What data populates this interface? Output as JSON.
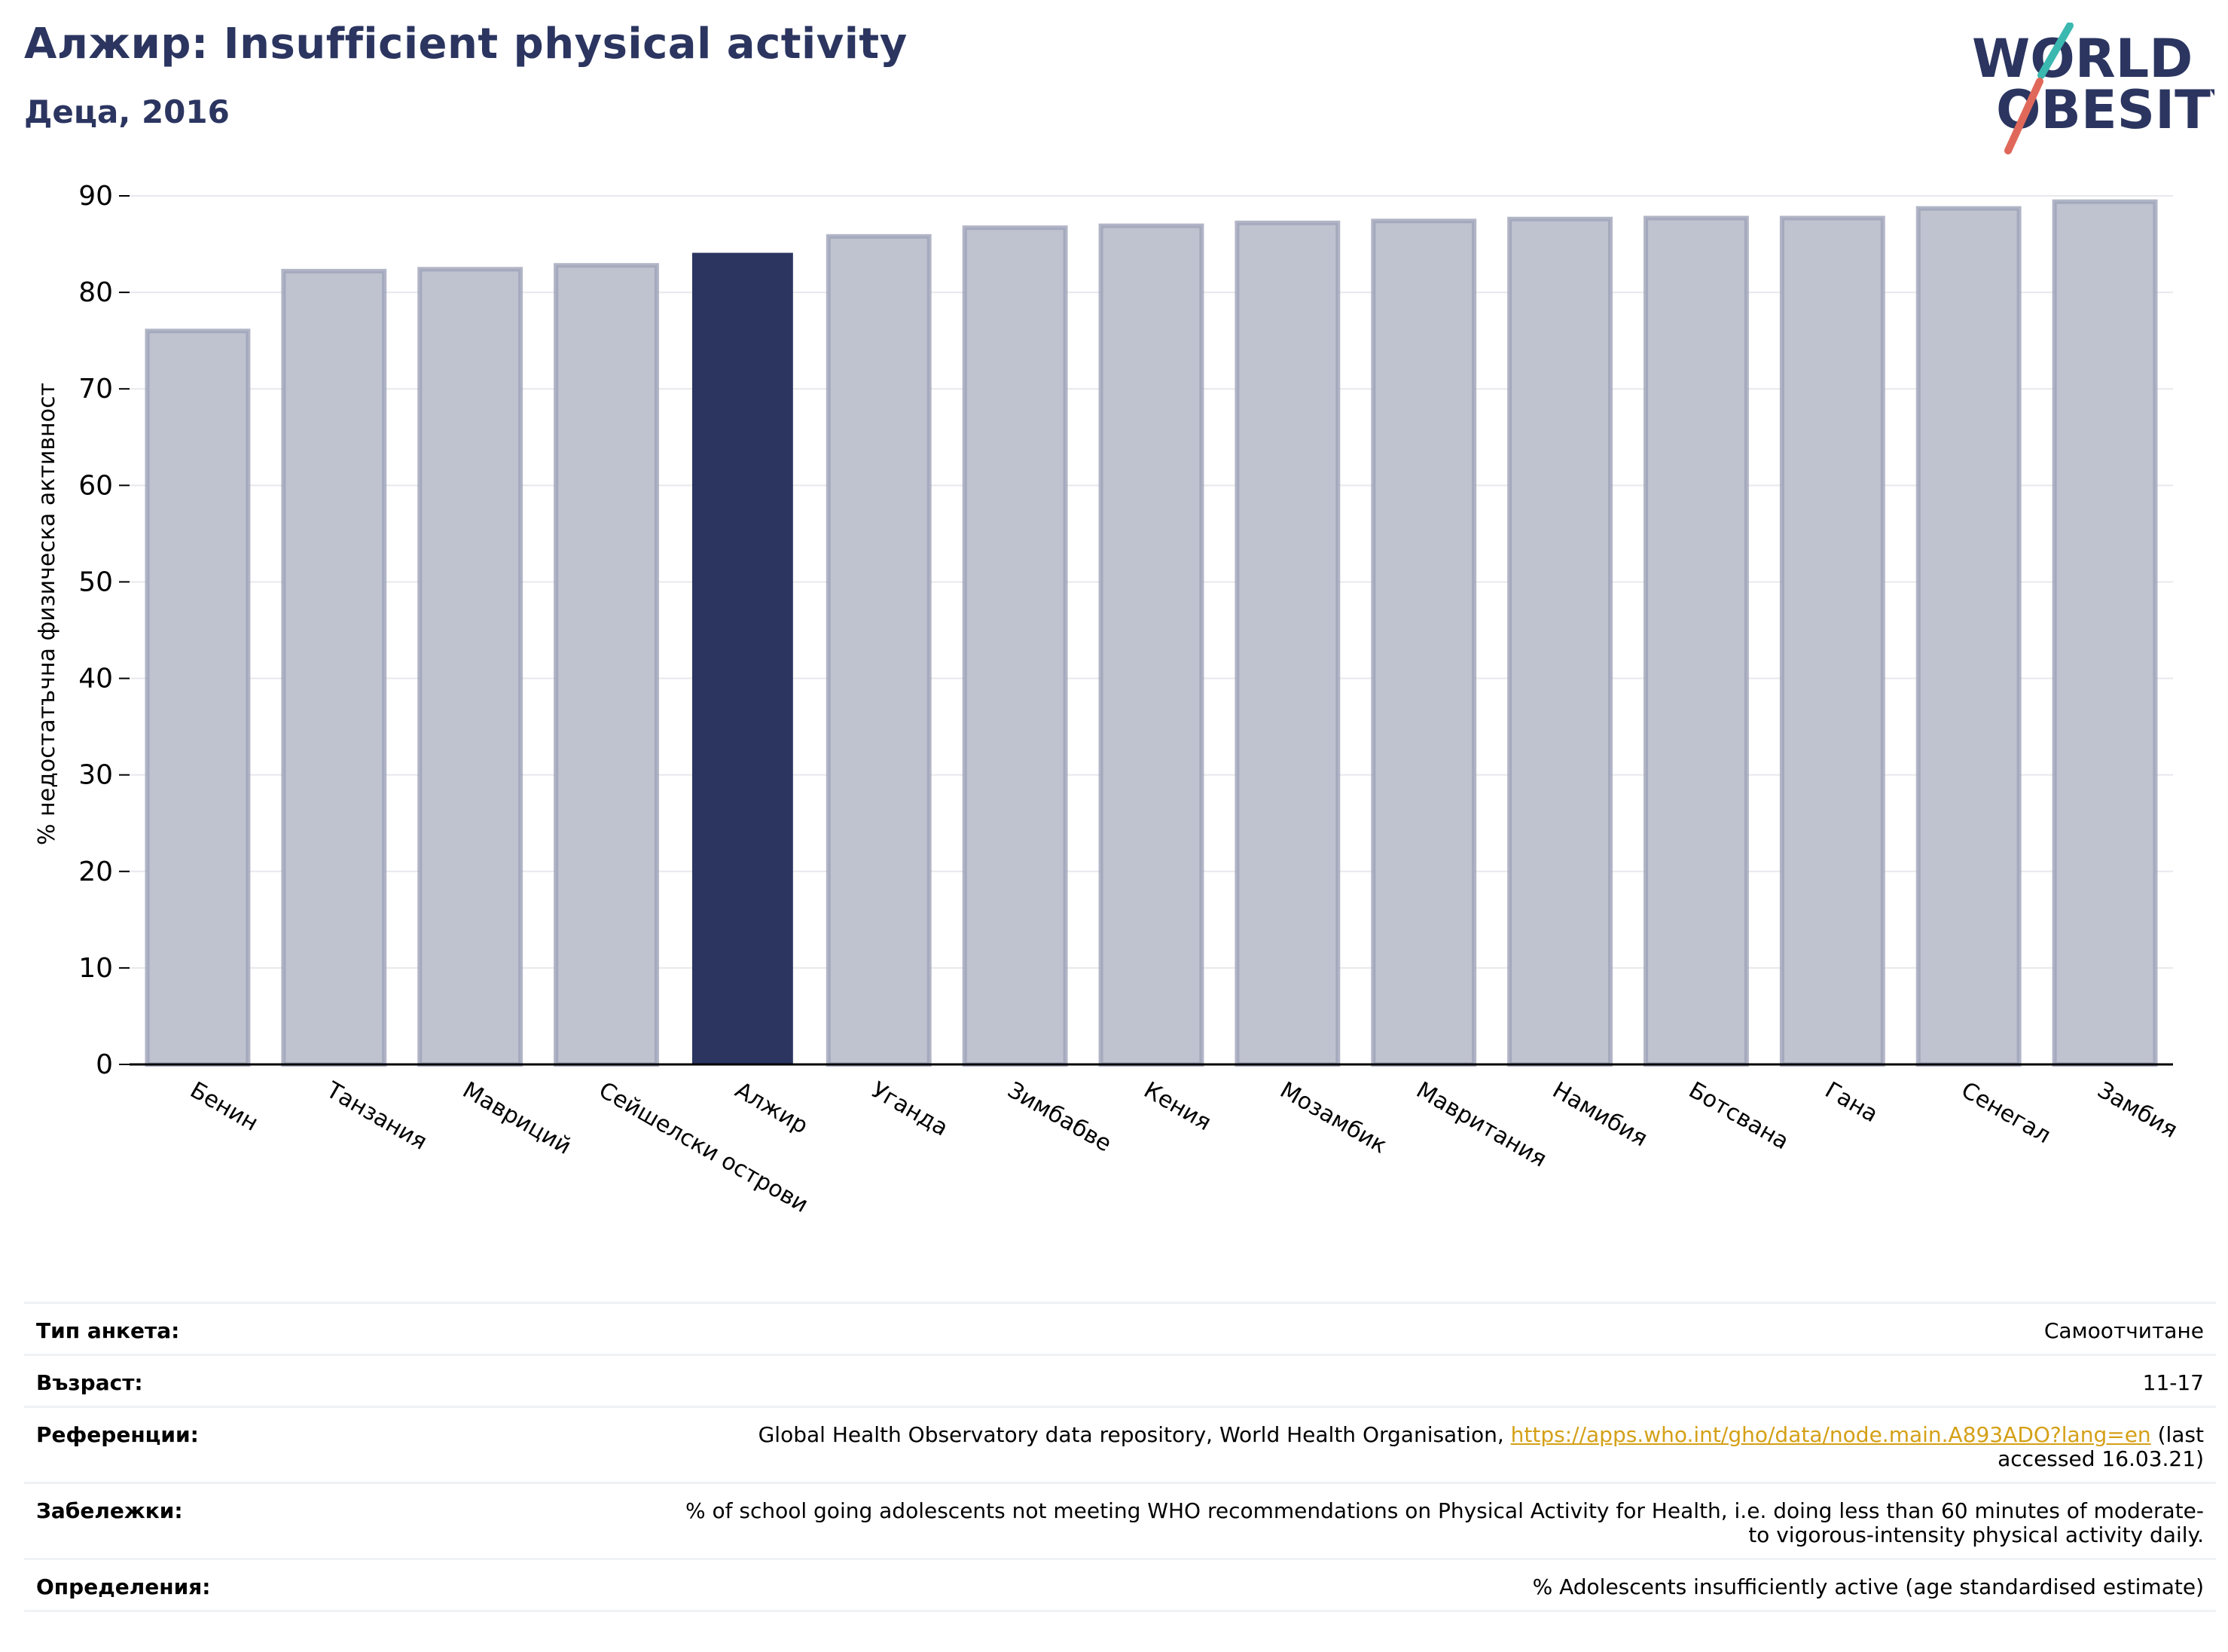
{
  "header": {
    "title": "Алжир: Insufficient physical activity",
    "subtitle": "Деца, 2016"
  },
  "logo": {
    "line1": "WORLD",
    "line2": "OBESITY"
  },
  "colors": {
    "highlight": "#2b3560",
    "bar": "#bfc2cf",
    "bar_edge": "#9ea2b8",
    "link": "#d4a017",
    "grid": "#e8e8ee"
  },
  "chart_data": {
    "type": "bar",
    "ylabel": "% недостатъчна физическа активност",
    "xlabel": "",
    "ylim": [
      0,
      90
    ],
    "yticks": [
      0,
      10,
      20,
      30,
      40,
      50,
      60,
      70,
      80,
      90
    ],
    "grid": true,
    "highlight": "Алжир",
    "categories": [
      "Бенин",
      "Танзания",
      "Мавриций",
      "Сейшелски острови",
      "Алжир",
      "Уганда",
      "Зимбабве",
      "Кения",
      "Мозамбик",
      "Мавритания",
      "Намибия",
      "Ботсвана",
      "Гана",
      "Сенегал",
      "Замбия"
    ],
    "values": [
      76.0,
      82.2,
      82.4,
      82.8,
      84.1,
      85.8,
      86.7,
      86.9,
      87.2,
      87.4,
      87.6,
      87.7,
      87.7,
      88.7,
      89.4
    ]
  },
  "info": {
    "survey_type": {
      "label": "Тип анкета:",
      "value": "Самоотчитане"
    },
    "age": {
      "label": "Възраст:",
      "value": "11-17"
    },
    "references": {
      "label": "Референции:",
      "prefix": "Global Health Observatory data repository, World Health Organisation, ",
      "url": "https://apps.who.int/gho/data/node.main.A893ADO?lang=en",
      "suffix": " (last accessed 16.03.21)"
    },
    "notes": {
      "label": "Забележки:",
      "value": "% of school going adolescents not meeting WHO recommendations on Physical Activity for Health, i.e. doing less than 60 minutes of moderate- to vigorous-intensity physical activity daily."
    },
    "definitions": {
      "label": "Определения:",
      "value": "% Adolescents insufficiently active (age standardised estimate)"
    }
  }
}
